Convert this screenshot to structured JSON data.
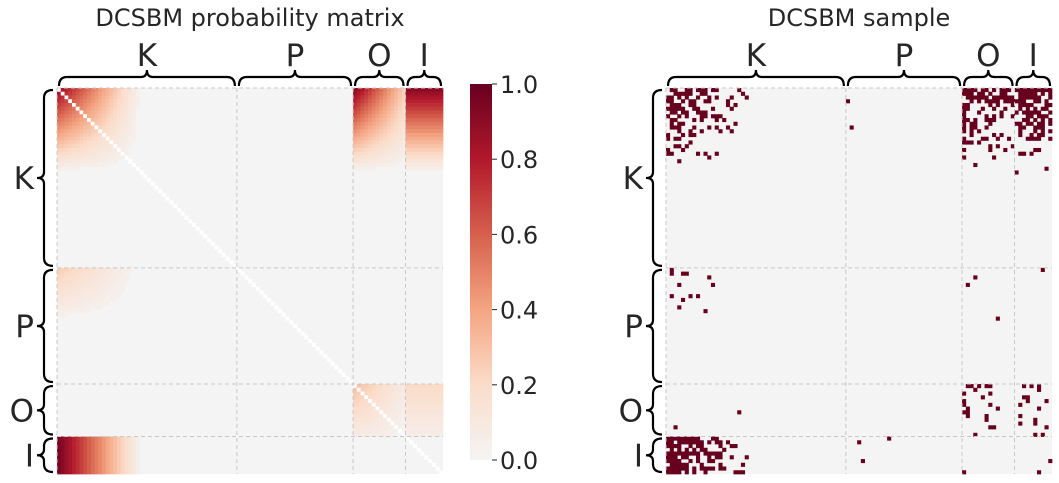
{
  "chart_data": [
    {
      "type": "heatmap",
      "title": "DCSBM probability matrix",
      "blocks": [
        "K",
        "P",
        "O",
        "I"
      ],
      "block_sizes": [
        48,
        31,
        14,
        10
      ],
      "block_probabilities": [
        [
          0.85,
          0.02,
          0.9,
          0.9
        ],
        [
          0.25,
          0.02,
          0.02,
          0.02
        ],
        [
          0.02,
          0.02,
          0.3,
          0.2
        ],
        [
          0.95,
          0.02,
          0.02,
          0.02
        ]
      ],
      "degree_decay": {
        "K": 0.045,
        "P": 0.07,
        "O": 0.055,
        "I": 0.0
      },
      "diagonal": "white",
      "colorbar": {
        "min": 0.0,
        "max": 1.0,
        "tick_labels": [
          "0.0",
          "0.2",
          "0.4",
          "0.6",
          "0.8",
          "1.0"
        ],
        "colors": [
          "#f4f4f4",
          "#fbdcc9",
          "#f4a582",
          "#d6604d",
          "#b2182b",
          "#67001f"
        ]
      },
      "grid": true
    },
    {
      "type": "heatmap",
      "title": "DCSBM sample",
      "blocks": [
        "K",
        "P",
        "O",
        "I"
      ],
      "block_sizes": [
        48,
        31,
        14,
        10
      ],
      "values": "binary",
      "edge_color": "#67001f",
      "empty_color": "#f4f4f4",
      "grid": true
    }
  ]
}
